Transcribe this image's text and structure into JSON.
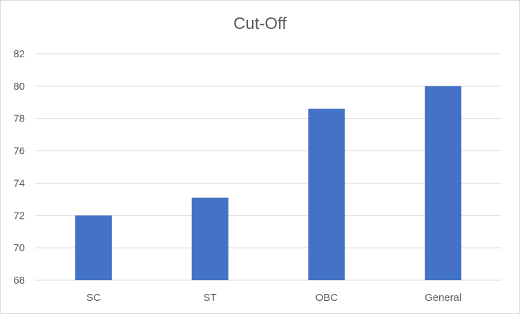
{
  "chart_data": {
    "type": "bar",
    "title": "Cut-Off",
    "xlabel": "",
    "ylabel": "",
    "categories": [
      "SC",
      "ST",
      "OBC",
      "General"
    ],
    "values": [
      72,
      73.1,
      78.6,
      80
    ],
    "ylim": [
      68,
      82
    ],
    "yticks": [
      "68",
      "70",
      "72",
      "74",
      "76",
      "78",
      "80",
      "82"
    ],
    "grid": true,
    "legend": "none",
    "bar_color": "#4472c4",
    "grid_color": "#d9d9d9"
  }
}
